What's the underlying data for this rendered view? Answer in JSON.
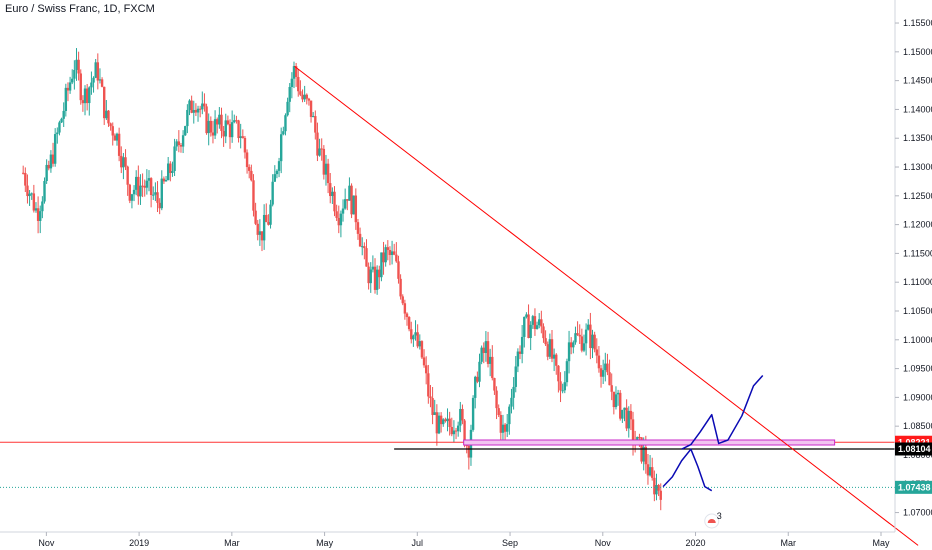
{
  "header": {
    "symbol_title": "Euro / Swiss Franc, 1D, FXCM"
  },
  "colors": {
    "up": "#26a69a",
    "down": "#ef5350",
    "trendline": "#ff0000",
    "projection": "#0a0ab4",
    "zone_fill": "#f2c4f0",
    "zone_stroke": "#c828c8",
    "price_tag_red": "#ff1a1a",
    "price_tag_black": "#000000",
    "price_tag_teal": "#26a69a",
    "hline_red": "#ff3333",
    "hline_black": "#000000"
  },
  "chart_data": {
    "type": "candlestick",
    "title": "Euro / Swiss Franc, 1D, FXCM",
    "y_axis": {
      "position": "right",
      "ylim": [
        1.0635,
        1.159
      ],
      "ticks": [
        "1.15500",
        "1.15000",
        "1.14500",
        "1.14000",
        "1.13500",
        "1.13000",
        "1.12500",
        "1.12000",
        "1.11500",
        "1.11000",
        "1.10500",
        "1.10000",
        "1.09500",
        "1.09000",
        "1.08500",
        "1.08000",
        "1.07500",
        "1.07000"
      ]
    },
    "x_axis": {
      "labels": [
        "Nov",
        "2019",
        "Mar",
        "May",
        "Jul",
        "Sep",
        "Nov",
        "2020",
        "Mar",
        "May"
      ],
      "label_months": [
        0.5,
        2.5,
        4.5,
        6.5,
        8.5,
        10.5,
        12.5,
        14.5,
        16.5,
        18.5
      ],
      "range_months": [
        -0.5,
        19.6
      ]
    },
    "price_anchors": [
      [
        0,
        1.129
      ],
      [
        0.3,
        1.122
      ],
      [
        0.6,
        1.131
      ],
      [
        0.9,
        1.141
      ],
      [
        1.1,
        1.148
      ],
      [
        1.3,
        1.142
      ],
      [
        1.6,
        1.147
      ],
      [
        1.8,
        1.138
      ],
      [
        2.0,
        1.136
      ],
      [
        2.3,
        1.126
      ],
      [
        2.6,
        1.127
      ],
      [
        2.9,
        1.124
      ],
      [
        3.2,
        1.13
      ],
      [
        3.5,
        1.138
      ],
      [
        3.7,
        1.142
      ],
      [
        4.0,
        1.137
      ],
      [
        4.4,
        1.137
      ],
      [
        4.7,
        1.136
      ],
      [
        4.9,
        1.128
      ],
      [
        5.1,
        1.118
      ],
      [
        5.3,
        1.121
      ],
      [
        5.5,
        1.132
      ],
      [
        5.7,
        1.143
      ],
      [
        5.85,
        1.147
      ],
      [
        6.0,
        1.142
      ],
      [
        6.2,
        1.14
      ],
      [
        6.4,
        1.132
      ],
      [
        6.6,
        1.127
      ],
      [
        6.8,
        1.122
      ],
      [
        7.0,
        1.126
      ],
      [
        7.2,
        1.121
      ],
      [
        7.4,
        1.112
      ],
      [
        7.6,
        1.11
      ],
      [
        7.8,
        1.115
      ],
      [
        8.0,
        1.114
      ],
      [
        8.2,
        1.107
      ],
      [
        8.4,
        1.101
      ],
      [
        8.6,
        1.097
      ],
      [
        8.8,
        1.088
      ],
      [
        9.0,
        1.084
      ],
      [
        9.2,
        1.085
      ],
      [
        9.4,
        1.087
      ],
      [
        9.6,
        1.081
      ],
      [
        9.8,
        1.095
      ],
      [
        10.0,
        1.099
      ],
      [
        10.2,
        1.088
      ],
      [
        10.4,
        1.083
      ],
      [
        10.6,
        1.095
      ],
      [
        10.8,
        1.102
      ],
      [
        11.0,
        1.103
      ],
      [
        11.2,
        1.102
      ],
      [
        11.4,
        1.097
      ],
      [
        11.6,
        1.09
      ],
      [
        11.8,
        1.101
      ],
      [
        12.0,
        1.1
      ],
      [
        12.2,
        1.101
      ],
      [
        12.4,
        1.097
      ],
      [
        12.6,
        1.093
      ],
      [
        12.8,
        1.089
      ],
      [
        13.0,
        1.087
      ],
      [
        13.2,
        1.082
      ],
      [
        13.4,
        1.08
      ],
      [
        13.55,
        1.075
      ],
      [
        13.7,
        1.0744
      ]
    ],
    "trendline": {
      "from": [
        5.85,
        1.1475
      ],
      "to": [
        19.3,
        1.0643
      ]
    },
    "horizontal_lines": [
      {
        "price": 1.08221,
        "label": "1.08221",
        "color": "red"
      },
      {
        "price": 1.08104,
        "label": "1.08104",
        "color": "black",
        "from_month": 8.0
      },
      {
        "price": 1.07438,
        "label": "1.07438",
        "color": "teal",
        "dashed": true
      }
    ],
    "zone": {
      "from_month": 9.5,
      "to_month": 17.5,
      "price_top": 1.0826,
      "price_bottom": 1.0818
    },
    "projection_paths": [
      [
        [
          14.2,
          1.081
        ],
        [
          14.4,
          1.0818
        ],
        [
          14.6,
          1.084
        ],
        [
          14.85,
          1.087
        ],
        [
          15.0,
          1.082
        ],
        [
          15.2,
          1.0826
        ],
        [
          15.5,
          1.0868
        ],
        [
          15.75,
          1.092
        ],
        [
          15.95,
          1.0938
        ]
      ],
      [
        [
          13.8,
          1.0745
        ],
        [
          14.0,
          1.0762
        ],
        [
          14.2,
          1.079
        ],
        [
          14.4,
          1.081
        ],
        [
          14.55,
          1.078
        ],
        [
          14.7,
          1.0745
        ],
        [
          14.85,
          1.0738
        ]
      ]
    ],
    "grid": false,
    "legend": "none"
  },
  "watermark": {
    "badge_count": "3"
  }
}
